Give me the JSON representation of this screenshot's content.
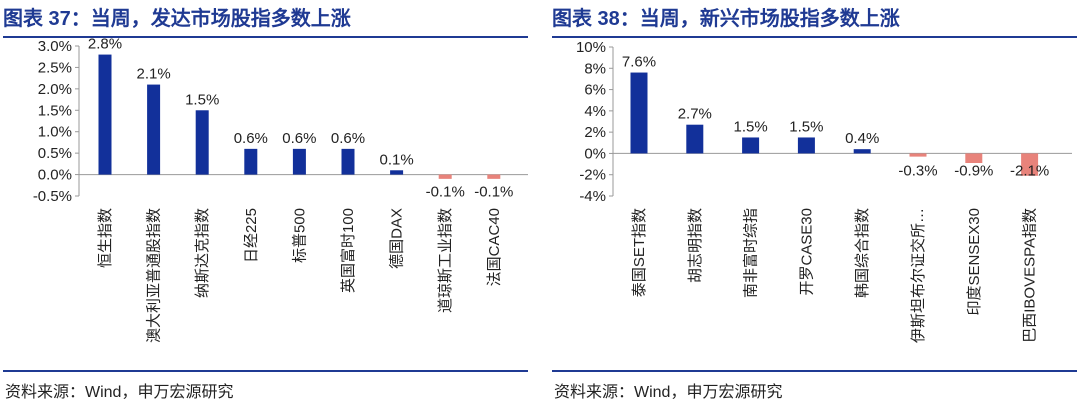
{
  "charts": [
    {
      "title": "图表 37：当周，发达市场股指多数上涨",
      "source": "资料来源：Wind，申万宏源研究"
    },
    {
      "title": "图表 38：当周，新兴市场股指多数上涨",
      "source": "资料来源：Wind，申万宏源研究"
    }
  ],
  "colors": {
    "positive": "#12309a",
    "negative": "#e8837b",
    "title": "#1f3a93",
    "text": "#222222",
    "axis": "#999999"
  },
  "chart_data": [
    {
      "type": "bar",
      "title": "",
      "xlabel": "",
      "ylabel": "",
      "categories": [
        "恒生指数",
        "澳大利亚普通股指数",
        "纳斯达克指数",
        "日经225",
        "标普500",
        "英国富时100",
        "德国DAX",
        "道琼斯工业指数",
        "法国CAC40"
      ],
      "values": [
        2.8,
        2.1,
        1.5,
        0.6,
        0.6,
        0.6,
        0.1,
        -0.1,
        -0.1
      ],
      "labels": [
        "2.8%",
        "2.1%",
        "1.5%",
        "0.6%",
        "0.6%",
        "0.6%",
        "0.1%",
        "-0.1%",
        "-0.1%"
      ],
      "ylim": [
        -0.5,
        3.0
      ],
      "yticks": [
        3.0,
        2.5,
        2.0,
        1.5,
        1.0,
        0.5,
        0.0,
        -0.5
      ],
      "ytick_labels": [
        "3.0%",
        "2.5%",
        "2.0%",
        "1.5%",
        "1.0%",
        "0.5%",
        "0.0%",
        "-0.5%"
      ],
      "grid": false,
      "legend": "none"
    },
    {
      "type": "bar",
      "title": "",
      "xlabel": "",
      "ylabel": "",
      "categories": [
        "泰国SET指数",
        "胡志明指数",
        "南非富时综指",
        "开罗CASE30",
        "韩国综合指数",
        "伊斯坦布尔证交所…",
        "印度SENSEX30",
        "巴西IBOVESPA指数"
      ],
      "values": [
        7.6,
        2.7,
        1.5,
        1.5,
        0.4,
        -0.3,
        -0.9,
        -2.1
      ],
      "labels": [
        "7.6%",
        "2.7%",
        "1.5%",
        "1.5%",
        "0.4%",
        "-0.3%",
        "-0.9%",
        "-2.1%"
      ],
      "ylim": [
        -4,
        10
      ],
      "yticks": [
        10,
        8,
        6,
        4,
        2,
        0,
        -2,
        -4
      ],
      "ytick_labels": [
        "10%",
        "8%",
        "6%",
        "4%",
        "2%",
        "0%",
        "-2%",
        "-4%"
      ],
      "grid": false,
      "legend": "none"
    }
  ]
}
